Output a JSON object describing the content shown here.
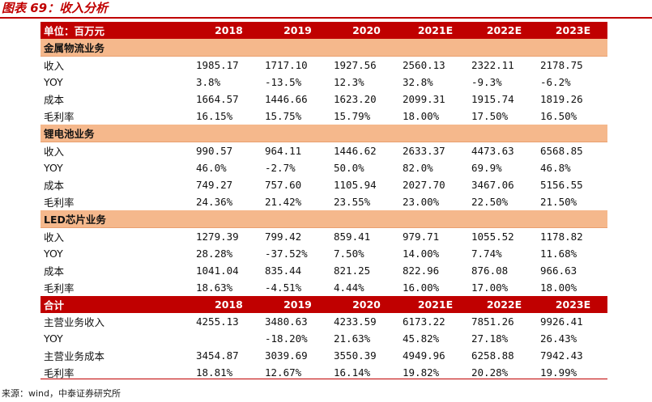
{
  "title": "图表 69：收入分析",
  "source": "来源：wind，中泰证券研究所",
  "header": {
    "label": "单位：百万元",
    "years": [
      "2018",
      "2019",
      "2020",
      "2021E",
      "2022E",
      "2023E"
    ]
  },
  "sections": [
    {
      "name": "金属物流业务",
      "rows": [
        {
          "label": "收入",
          "values": [
            "1985.17",
            "1717.10",
            "1927.56",
            "2560.13",
            "2322.11",
            "2178.75"
          ]
        },
        {
          "label": "YOY",
          "values": [
            "3.8%",
            "-13.5%",
            "12.3%",
            "32.8%",
            "-9.3%",
            "-6.2%"
          ]
        },
        {
          "label": "成本",
          "values": [
            "1664.57",
            "1446.66",
            "1623.20",
            "2099.31",
            "1915.74",
            "1819.26"
          ]
        },
        {
          "label": "毛利率",
          "values": [
            "16.15%",
            "15.75%",
            "15.79%",
            "18.00%",
            "17.50%",
            "16.50%"
          ]
        }
      ]
    },
    {
      "name": "锂电池业务",
      "rows": [
        {
          "label": "收入",
          "values": [
            "990.57",
            "964.11",
            "1446.62",
            "2633.37",
            "4473.63",
            "6568.85"
          ]
        },
        {
          "label": "YOY",
          "values": [
            "46.0%",
            "-2.7%",
            "50.0%",
            "82.0%",
            "69.9%",
            "46.8%"
          ]
        },
        {
          "label": "成本",
          "values": [
            "749.27",
            "757.60",
            "1105.94",
            "2027.70",
            "3467.06",
            "5156.55"
          ]
        },
        {
          "label": "毛利率",
          "values": [
            "24.36%",
            "21.42%",
            "23.55%",
            "23.00%",
            "22.50%",
            "21.50%"
          ]
        }
      ]
    },
    {
      "name": "LED芯片业务",
      "rows": [
        {
          "label": "收入",
          "values": [
            "1279.39",
            "799.42",
            "859.41",
            "979.71",
            "1055.52",
            "1178.82"
          ]
        },
        {
          "label": "YOY",
          "values": [
            "28.28%",
            "-37.52%",
            "7.50%",
            "14.00%",
            "7.74%",
            "11.68%"
          ]
        },
        {
          "label": "成本",
          "values": [
            "1041.04",
            "835.44",
            "821.25",
            "822.96",
            "876.08",
            "966.63"
          ]
        },
        {
          "label": "毛利率",
          "values": [
            "18.63%",
            "-4.51%",
            "4.44%",
            "16.00%",
            "17.00%",
            "18.00%"
          ]
        }
      ]
    }
  ],
  "total": {
    "header": {
      "label": "合计",
      "years": [
        "2018",
        "2019",
        "2020",
        "2021E",
        "2022E",
        "2023E"
      ]
    },
    "rows": [
      {
        "label": "主营业务收入",
        "values": [
          "4255.13",
          "3480.63",
          "4233.59",
          "6173.22",
          "7851.26",
          "9926.41"
        ]
      },
      {
        "label": "YOY",
        "values": [
          "",
          "-18.20%",
          "21.63%",
          "45.82%",
          "27.18%",
          "26.43%"
        ]
      },
      {
        "label": "主营业务成本",
        "values": [
          "3454.87",
          "3039.69",
          "3550.39",
          "4949.96",
          "6258.88",
          "7942.43"
        ]
      },
      {
        "label": "毛利率",
        "values": [
          "18.81%",
          "12.67%",
          "16.14%",
          "19.82%",
          "20.28%",
          "19.99%"
        ]
      }
    ]
  }
}
